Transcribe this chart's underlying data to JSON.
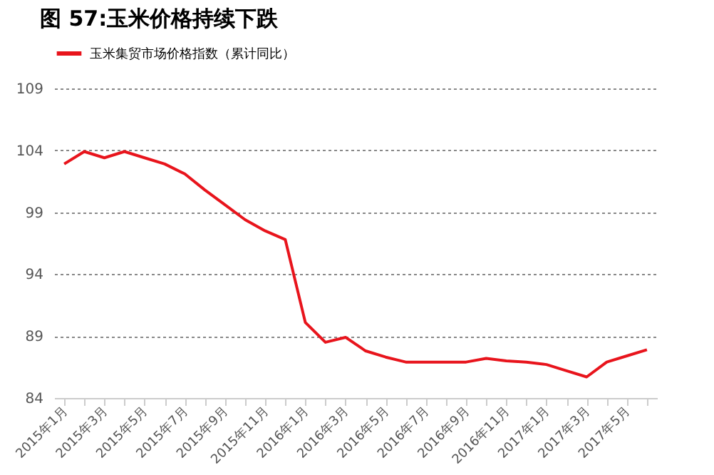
{
  "chart_data": {
    "type": "line",
    "title": "图 57:玉米价格持续下跌",
    "categories": [
      "2015年1月",
      null,
      "2015年3月",
      null,
      "2015年5月",
      null,
      "2015年7月",
      null,
      "2015年9月",
      null,
      "2015年11月",
      null,
      "2016年1月",
      null,
      "2016年3月",
      null,
      "2016年5月",
      null,
      "2016年7月",
      null,
      "2016年9月",
      null,
      "2016年11月",
      null,
      "2017年1月",
      null,
      "2017年3月",
      null,
      "2017年5月",
      null
    ],
    "series": [
      {
        "name": "玉米集贸市场价格指数（累计同比）",
        "color": "#e8141c",
        "values": [
          102.9,
          103.9,
          103.4,
          103.9,
          103.4,
          102.9,
          102.1,
          100.8,
          99.6,
          98.4,
          97.5,
          96.8,
          90.1,
          88.5,
          88.9,
          87.8,
          87.3,
          86.9,
          86.9,
          86.9,
          86.9,
          87.2,
          87.0,
          86.9,
          86.7,
          86.2,
          85.7,
          86.9,
          87.4,
          87.9
        ]
      }
    ],
    "ylim": [
      84,
      109
    ],
    "yticks": [
      84,
      89,
      94,
      99,
      104,
      109
    ],
    "grid": "y",
    "legend": "top",
    "marker": "none",
    "line_style": "solid"
  }
}
